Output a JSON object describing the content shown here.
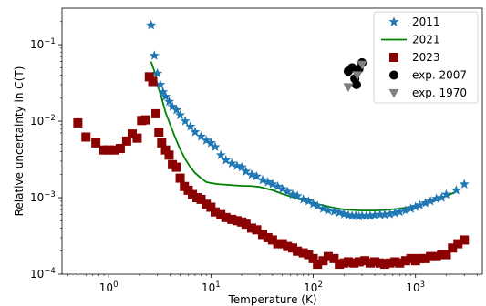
{
  "chart_data": {
    "type": "scatter",
    "title": "",
    "xlabel": "Temperature (K)",
    "ylabel_prefix": "Relative uncertainty in ",
    "ylabel_var": "C",
    "ylabel_suffix": "(T)",
    "xscale": "log",
    "yscale": "log",
    "xlim": [
      0.35,
      4500
    ],
    "ylim": [
      0.0001,
      0.3
    ],
    "xticks": [
      {
        "value": 1,
        "base": "10",
        "exp": "0"
      },
      {
        "value": 10,
        "base": "10",
        "exp": "1"
      },
      {
        "value": 100,
        "base": "10",
        "exp": "2"
      },
      {
        "value": 1000,
        "base": "10",
        "exp": "3"
      }
    ],
    "yticks": [
      {
        "value": 0.0001,
        "base": "10",
        "exp": "−4"
      },
      {
        "value": 0.001,
        "base": "10",
        "exp": "−3"
      },
      {
        "value": 0.01,
        "base": "10",
        "exp": "−2"
      },
      {
        "value": 0.1,
        "base": "10",
        "exp": "−1"
      }
    ],
    "grid": false,
    "legend_position": "top-right",
    "series": [
      {
        "name": "2011",
        "kind": "star",
        "color": "#1f77b4",
        "x": [
          2.6,
          2.8,
          3.0,
          3.2,
          3.4,
          3.6,
          3.9,
          4.2,
          4.6,
          5.0,
          5.6,
          6.3,
          7.0,
          8.0,
          9.0,
          10,
          11,
          12.5,
          14,
          16,
          18,
          20,
          22,
          25,
          28,
          32,
          36,
          40,
          45,
          50,
          56,
          63,
          70,
          80,
          90,
          100,
          110,
          125,
          140,
          160,
          180,
          200,
          220,
          240,
          260,
          280,
          300,
          330,
          360,
          400,
          450,
          500,
          560,
          630,
          700,
          800,
          900,
          1000,
          1100,
          1250,
          1400,
          1600,
          1800,
          2000,
          2500,
          3000
        ],
        "y": [
          0.18,
          0.072,
          0.042,
          0.03,
          0.024,
          0.021,
          0.018,
          0.0155,
          0.014,
          0.012,
          0.01,
          0.0085,
          0.0072,
          0.0063,
          0.0056,
          0.0052,
          0.0046,
          0.0036,
          0.0031,
          0.0028,
          0.0026,
          0.0025,
          0.0022,
          0.002,
          0.0019,
          0.0017,
          0.0016,
          0.0015,
          0.0014,
          0.0013,
          0.0012,
          0.0011,
          0.00105,
          0.00095,
          0.0009,
          0.00083,
          0.00078,
          0.00072,
          0.00068,
          0.00066,
          0.00064,
          0.00061,
          0.00059,
          0.00058,
          0.00058,
          0.00057,
          0.00058,
          0.00058,
          0.00058,
          0.00059,
          0.0006,
          0.0006,
          0.00061,
          0.00063,
          0.00065,
          0.00068,
          0.00072,
          0.00076,
          0.0008,
          0.00085,
          0.0009,
          0.00097,
          0.001,
          0.0011,
          0.00125,
          0.0015
        ]
      },
      {
        "name": "2021",
        "kind": "line",
        "color": "#008000",
        "x": [
          2.6,
          2.8,
          3.0,
          3.3,
          3.6,
          4.0,
          4.5,
          5.0,
          5.6,
          6.3,
          7.0,
          8.0,
          9.0,
          10,
          12,
          14,
          17,
          20,
          25,
          30,
          40,
          50,
          70,
          100,
          150,
          200,
          300,
          400,
          500,
          700,
          1000,
          1500,
          2000,
          2500
        ],
        "y": [
          0.06,
          0.045,
          0.03,
          0.02,
          0.013,
          0.009,
          0.006,
          0.0043,
          0.0032,
          0.0025,
          0.0021,
          0.0018,
          0.0016,
          0.00155,
          0.0015,
          0.00148,
          0.00145,
          0.00143,
          0.00142,
          0.00138,
          0.00125,
          0.00112,
          0.00097,
          0.00085,
          0.00075,
          0.0007,
          0.00068,
          0.00068,
          0.00069,
          0.00072,
          0.00078,
          0.0009,
          0.00105,
          0.0012
        ]
      },
      {
        "name": "2023",
        "kind": "square",
        "color": "#8b0000",
        "x": [
          0.5,
          0.6,
          0.75,
          0.9,
          1.0,
          1.15,
          1.3,
          1.5,
          1.7,
          1.9,
          2.1,
          2.3,
          2.5,
          2.7,
          2.9,
          3.1,
          3.3,
          3.6,
          3.9,
          4.2,
          4.6,
          5.0,
          5.5,
          6.0,
          6.6,
          7.3,
          8.0,
          9.0,
          10,
          11,
          12.5,
          14,
          16,
          18,
          20,
          22,
          25,
          28,
          32,
          36,
          40,
          45,
          50,
          56,
          63,
          70,
          80,
          90,
          100,
          110,
          125,
          140,
          160,
          180,
          200,
          220,
          250,
          280,
          320,
          360,
          400,
          450,
          500,
          560,
          630,
          700,
          800,
          900,
          1000,
          1100,
          1250,
          1400,
          1600,
          1800,
          2000,
          2300,
          2600,
          3000
        ],
        "y": [
          0.0095,
          0.0062,
          0.0052,
          0.0042,
          0.0042,
          0.0042,
          0.0044,
          0.0055,
          0.0068,
          0.006,
          0.0102,
          0.0104,
          0.038,
          0.033,
          0.0125,
          0.0072,
          0.0052,
          0.0042,
          0.0036,
          0.0027,
          0.0025,
          0.0018,
          0.0014,
          0.00125,
          0.0011,
          0.001,
          0.00095,
          0.00082,
          0.00075,
          0.00065,
          0.0006,
          0.00055,
          0.00052,
          0.0005,
          0.00048,
          0.00045,
          0.0004,
          0.00038,
          0.00033,
          0.0003,
          0.00028,
          0.00025,
          0.00025,
          0.00023,
          0.00022,
          0.0002,
          0.00019,
          0.00018,
          0.00016,
          0.000135,
          0.00015,
          0.00017,
          0.00016,
          0.000135,
          0.00014,
          0.000145,
          0.00014,
          0.000145,
          0.00015,
          0.00014,
          0.000145,
          0.00014,
          0.000135,
          0.00014,
          0.000145,
          0.00014,
          0.00015,
          0.00016,
          0.00015,
          0.00016,
          0.00016,
          0.00017,
          0.00017,
          0.00018,
          0.00018,
          0.00022,
          0.00025,
          0.00028
        ]
      },
      {
        "name": "exp. 2007",
        "kind": "circle",
        "color": "#000000",
        "x": [
          220,
          240,
          255,
          265,
          280,
          300
        ],
        "y": [
          0.045,
          0.05,
          0.036,
          0.03,
          0.048,
          0.058
        ]
      },
      {
        "name": "exp. 1970",
        "kind": "triangle",
        "color": "#808080",
        "x": [
          220,
          270,
          300
        ],
        "y": [
          0.028,
          0.04,
          0.055
        ]
      }
    ]
  }
}
